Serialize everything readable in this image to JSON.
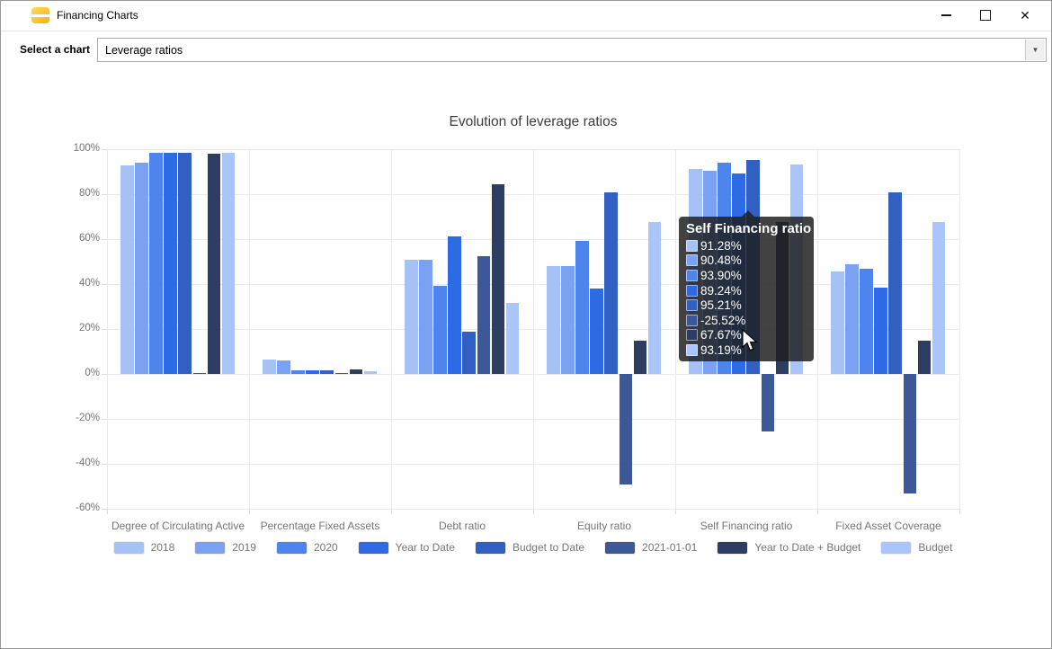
{
  "window": {
    "title": "Financing Charts"
  },
  "icons": {
    "app": "database-icon",
    "minimize": "minimize-icon",
    "maximize": "maximize-icon",
    "close": "close-icon",
    "dropdown": "▼"
  },
  "toolbar": {
    "label": "Select a chart",
    "selected_chart": "Leverage ratios"
  },
  "chart_data": {
    "type": "bar",
    "title": "Evolution of leverage ratios",
    "unit": "%",
    "categories": [
      "Degree of Circulating Active",
      "Percentage Fixed Assets",
      "Debt ratio",
      "Equity ratio",
      "Self Financing ratio",
      "Fixed Asset Coverage"
    ],
    "series": [
      {
        "name": "2018",
        "color": "#a6c1f4",
        "values": [
          93.0,
          6.5,
          50.8,
          48.0,
          91.28,
          45.7
        ]
      },
      {
        "name": "2019",
        "color": "#7ba2f0",
        "values": [
          94.0,
          6.1,
          51.0,
          48.2,
          90.48,
          48.9
        ]
      },
      {
        "name": "2020",
        "color": "#4d85ec",
        "values": [
          98.3,
          1.5,
          39.4,
          59.3,
          93.9,
          46.9
        ]
      },
      {
        "name": "Year to Date",
        "color": "#2e6ae3",
        "values": [
          98.4,
          1.6,
          61.2,
          38.0,
          89.24,
          38.4
        ]
      },
      {
        "name": "Budget to Date",
        "color": "#3260c2",
        "values": [
          98.4,
          1.7,
          19.0,
          80.7,
          95.21,
          80.7
        ]
      },
      {
        "name": "2021-01-01",
        "color": "#3c5899",
        "values": [
          0.5,
          0.4,
          52.4,
          -49.3,
          -25.52,
          -53.3
        ]
      },
      {
        "name": "Year to Date + Budget",
        "color": "#2e3e62",
        "values": [
          98.2,
          1.9,
          84.3,
          14.9,
          67.67,
          14.9
        ]
      },
      {
        "name": "Budget",
        "color": "#a9c5fa",
        "values": [
          98.5,
          1.4,
          31.7,
          67.7,
          93.19,
          67.6
        ]
      }
    ],
    "ylim": [
      -60,
      100
    ],
    "ytick_values": [
      100,
      80,
      60,
      40,
      20,
      0,
      -20,
      -40,
      -60
    ],
    "ytick_labels": [
      "100%",
      "80%",
      "60%",
      "40%",
      "20%",
      "0%",
      "-20%",
      "-40%",
      "-60%"
    ],
    "grid": true,
    "legend_position": "bottom"
  },
  "tooltip": {
    "title": "Self Financing ratio",
    "values": [
      "91.28%",
      "90.48%",
      "93.90%",
      "89.24%",
      "95.21%",
      "-25.52%",
      "67.67%",
      "93.19%"
    ]
  }
}
